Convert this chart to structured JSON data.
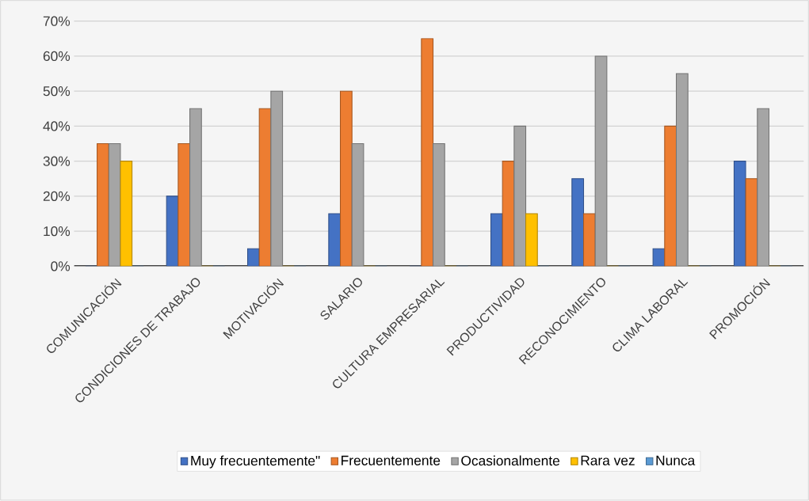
{
  "chart_data": {
    "type": "bar",
    "categories": [
      "COMUNICACIÓN",
      "CONDICIONES DE TRABAJO",
      "MOTIVACIÓN",
      "SALARIO",
      "CULTURA EMPRESARIAL",
      "PRODUCTIVIDAD",
      "RECONOCIMIENTO",
      "CLIMA LABORAL",
      "PROMOCIÓN"
    ],
    "series": [
      {
        "name": "Muy frecuentemente\"",
        "color": "#4472c4",
        "values": [
          0,
          20,
          5,
          15,
          0,
          15,
          25,
          5,
          30
        ]
      },
      {
        "name": "Frecuentemente",
        "color": "#ed7d31",
        "values": [
          35,
          35,
          45,
          50,
          65,
          30,
          15,
          40,
          25
        ]
      },
      {
        "name": "Ocasionalmente",
        "color": "#a5a5a5",
        "values": [
          35,
          45,
          50,
          35,
          35,
          40,
          60,
          55,
          45
        ]
      },
      {
        "name": "Rara vez",
        "color": "#ffc000",
        "values": [
          30,
          0,
          0,
          0,
          0,
          15,
          0,
          0,
          0
        ]
      },
      {
        "name": "Nunca",
        "color": "#5b9bd5",
        "values": [
          0,
          0,
          0,
          0,
          0,
          0,
          0,
          0,
          0
        ]
      }
    ],
    "ylim": [
      0,
      70
    ],
    "yticks": [
      {
        "value": 0,
        "label": "0%"
      },
      {
        "value": 10,
        "label": "10%"
      },
      {
        "value": 20,
        "label": "20%"
      },
      {
        "value": 30,
        "label": "30%"
      },
      {
        "value": 40,
        "label": "40%"
      },
      {
        "value": 50,
        "label": "50%"
      },
      {
        "value": 60,
        "label": "60%"
      },
      {
        "value": 70,
        "label": "70%"
      }
    ],
    "grid": "y",
    "legend": "bottom"
  }
}
